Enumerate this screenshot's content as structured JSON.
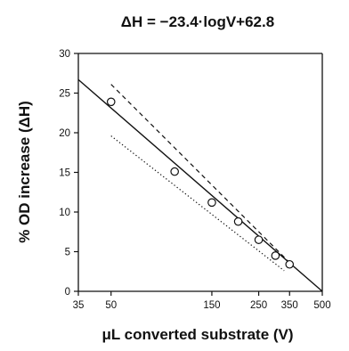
{
  "chart_data": {
    "type": "scatter",
    "title": "ΔH = −23.4·logV+62.8",
    "xlabel": "μL converted substrate (V)",
    "ylabel": "% OD increase (ΔH)",
    "x_scale": "log",
    "xlim": [
      35,
      500
    ],
    "ylim": [
      0,
      30
    ],
    "x_ticks": [
      35,
      50,
      150,
      250,
      350,
      500
    ],
    "x_tick_labels": [
      "35",
      "50",
      "150",
      "250",
      "350",
      "500"
    ],
    "y_ticks": [
      0,
      5,
      10,
      15,
      20,
      25,
      30
    ],
    "y_tick_labels": [
      "0",
      "5",
      "10",
      "15",
      "20",
      "25",
      "30"
    ],
    "grid": false,
    "points": [
      {
        "x": 50,
        "y": 23.9
      },
      {
        "x": 100,
        "y": 15.1
      },
      {
        "x": 150,
        "y": 11.2
      },
      {
        "x": 200,
        "y": 8.8
      },
      {
        "x": 250,
        "y": 6.5
      },
      {
        "x": 300,
        "y": 4.5
      },
      {
        "x": 350,
        "y": 3.4
      }
    ],
    "lines": [
      {
        "style": "solid",
        "x": [
          35,
          500
        ],
        "y": [
          26.7,
          0
        ]
      },
      {
        "style": "dashed",
        "x": [
          50,
          360
        ],
        "y": [
          26.1,
          3.3
        ]
      },
      {
        "style": "dotted",
        "x": [
          50,
          330
        ],
        "y": [
          19.6,
          2.6
        ]
      }
    ]
  }
}
